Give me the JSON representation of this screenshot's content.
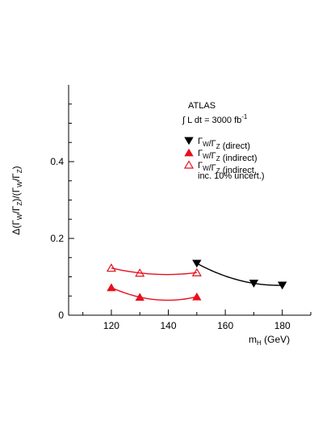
{
  "chart_data": {
    "type": "scatter",
    "title": "",
    "annotations": {
      "experiment": "ATLAS",
      "luminosity_prefix": "∫ L dt = 3000 fb",
      "luminosity_exponent": "-1"
    },
    "xlabel": {
      "main": "m",
      "sub": "H",
      "unit": " (GeV)"
    },
    "ylabel": "Δ(Γ_W/Γ_Z)/(Γ_W/Γ_Z)",
    "xlim": [
      105,
      190
    ],
    "ylim": [
      0,
      0.6
    ],
    "xticks": [
      120,
      140,
      160,
      180
    ],
    "yticks": [
      0,
      0.2,
      0.4
    ],
    "ytick_labels": [
      "0",
      "0.2",
      "0.4"
    ],
    "grid": false,
    "legend_position": "upper-right",
    "legend": [
      {
        "text": "Γ_W/Γ_Z (direct)",
        "marker": "triangle-down-filled",
        "color": "#000000"
      },
      {
        "text": "Γ_W/Γ_Z (indirect)",
        "marker": "triangle-up-filled",
        "color": "#e8101c"
      },
      {
        "text": "Γ_W/Γ_Z (indirect,",
        "text2": "inc. 10% uncert.)",
        "marker": "triangle-up-open",
        "color": "#e8101c"
      }
    ],
    "series": [
      {
        "name": "Γ_W/Γ_Z (direct)",
        "marker": "triangle-down-filled",
        "color": "#000000",
        "x": [
          150,
          170,
          180
        ],
        "y": [
          0.135,
          0.083,
          0.078
        ]
      },
      {
        "name": "Γ_W/Γ_Z (indirect)",
        "marker": "triangle-up-filled",
        "color": "#e8101c",
        "x": [
          120,
          130,
          150
        ],
        "y": [
          0.072,
          0.047,
          0.048
        ]
      },
      {
        "name": "Γ_W/Γ_Z (indirect, inc. 10% uncert.)",
        "marker": "triangle-up-open",
        "color": "#e8101c",
        "x": [
          120,
          130,
          150
        ],
        "y": [
          0.123,
          0.11,
          0.111
        ]
      }
    ]
  }
}
